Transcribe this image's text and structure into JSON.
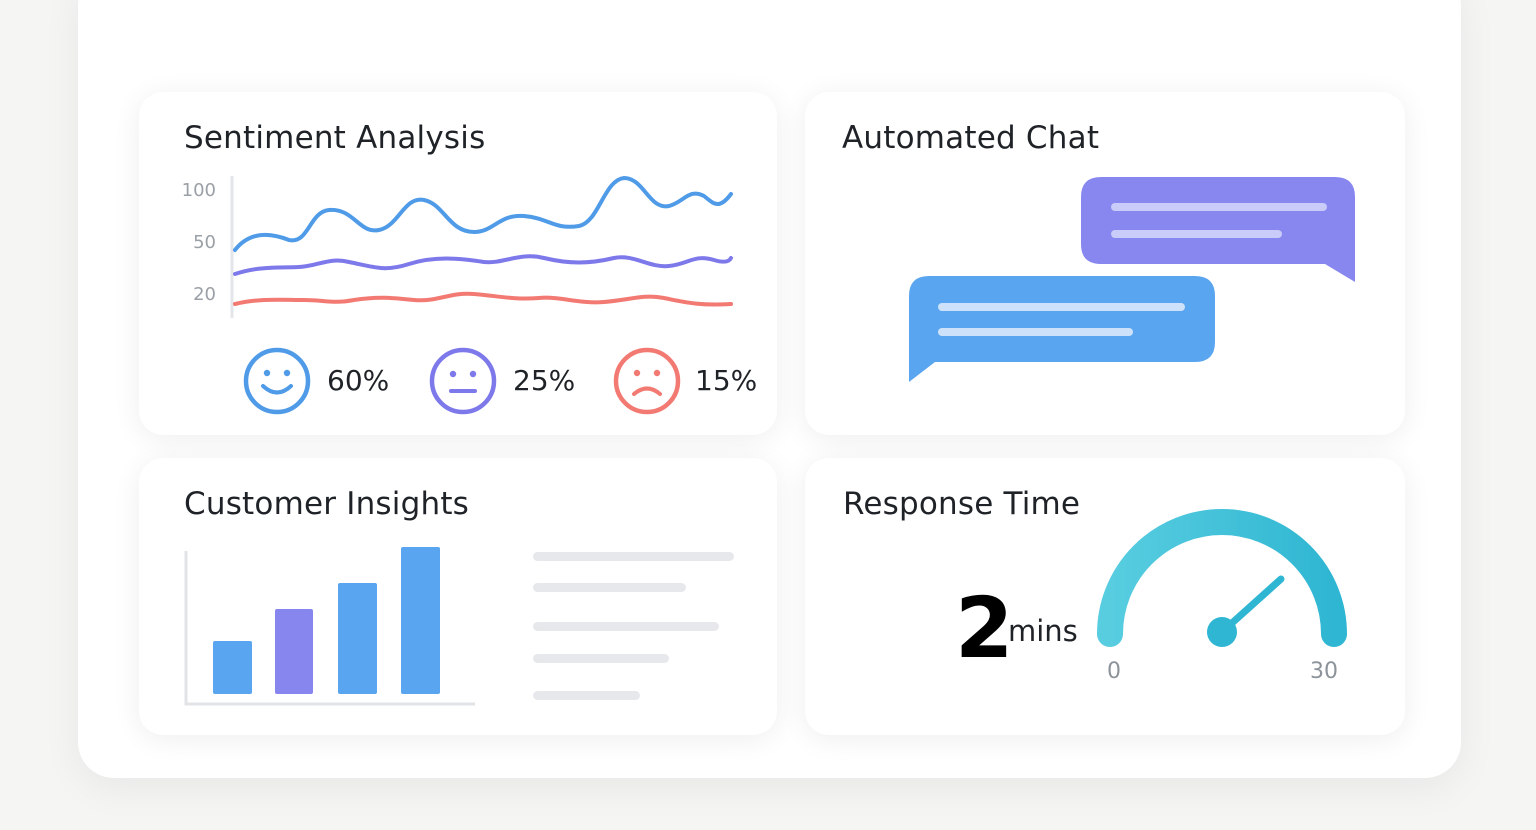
{
  "sentiment": {
    "title": "Sentiment Analysis",
    "y_ticks": [
      "100",
      "50",
      "20"
    ],
    "stats": [
      {
        "icon": "smiley-face-icon",
        "value": "60%",
        "color": "#4f9be8"
      },
      {
        "icon": "neutral-face-icon",
        "value": "25%",
        "color": "#7d79ea"
      },
      {
        "icon": "sad-face-icon",
        "value": "15%",
        "color": "#f27a73"
      }
    ],
    "colors": {
      "positive": "#4f9be8",
      "neutral": "#7d79ea",
      "negative": "#f27a73"
    }
  },
  "chat": {
    "title": "Automated Chat",
    "colors": {
      "incoming": "#8887f0",
      "outgoing": "#5aa5ef"
    }
  },
  "insights": {
    "title": "Customer Insights",
    "colors": {
      "blue": "#5aa5ef",
      "purple": "#8786ef"
    }
  },
  "response": {
    "title": "Response Time",
    "value": "2",
    "unit": "mins",
    "gauge_min": "0",
    "gauge_max": "30",
    "gauge_color": "#39bcd6"
  }
}
